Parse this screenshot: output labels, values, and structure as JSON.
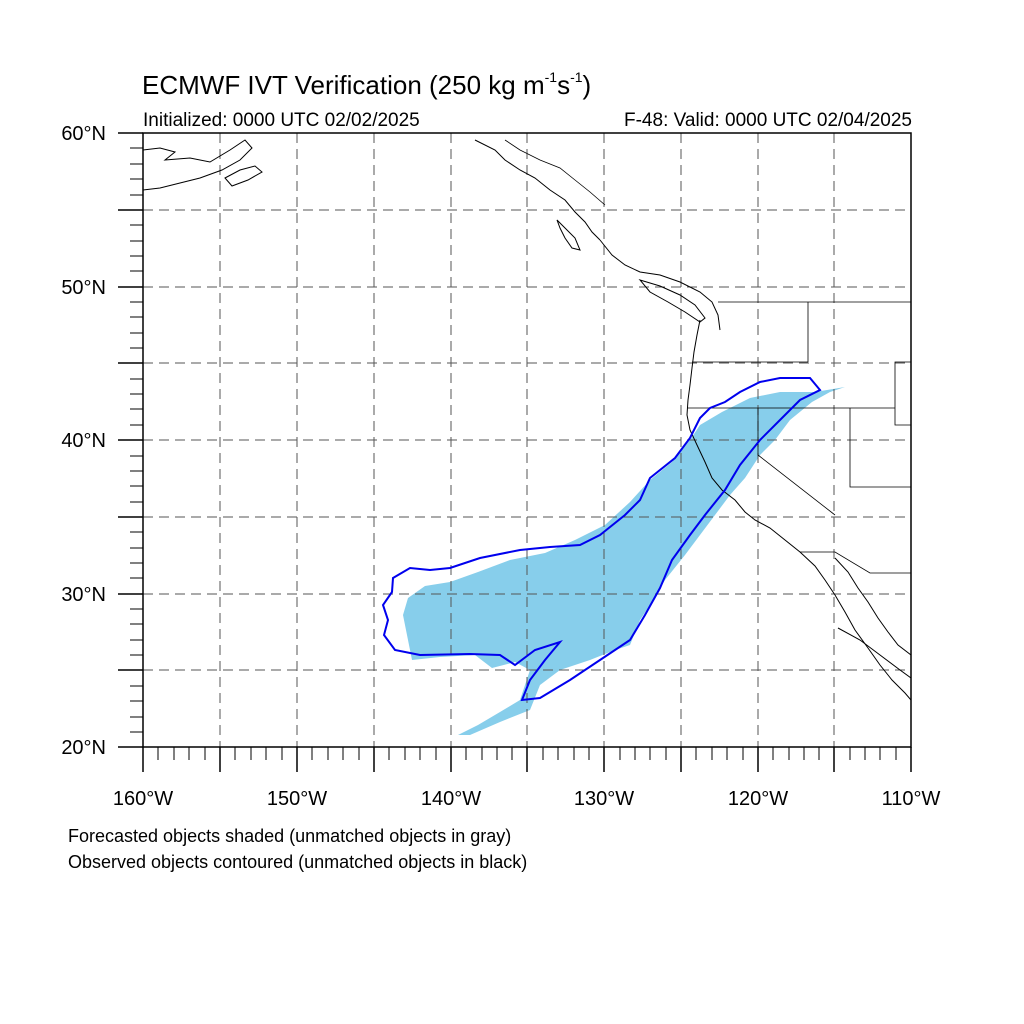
{
  "title": {
    "main": "ECMWF IVT Verification (250 kg m",
    "exp1": "-1",
    "mid": "s",
    "exp2": "-1",
    "tail": ")"
  },
  "init_label": "Initialized: 0000 UTC 02/02/2025",
  "valid_label": "F-48: Valid: 0000 UTC 02/04/2025",
  "lat_ticks": [
    {
      "lat": 60,
      "label": "60°N"
    },
    {
      "lat": 50,
      "label": "50°N"
    },
    {
      "lat": 40,
      "label": "40°N"
    },
    {
      "lat": 30,
      "label": "30°N"
    },
    {
      "lat": 20,
      "label": "20°N"
    }
  ],
  "lon_ticks": [
    {
      "lon": -160,
      "label": "160°W"
    },
    {
      "lon": -150,
      "label": "150°W"
    },
    {
      "lon": -140,
      "label": "140°W"
    },
    {
      "lon": -130,
      "label": "130°W"
    },
    {
      "lon": -120,
      "label": "120°W"
    },
    {
      "lon": -110,
      "label": "110°W"
    }
  ],
  "caption_forecast": "Forecasted objects shaded (unmatched objects in gray)",
  "caption_observed": "Observed objects contoured (unmatched objects in black)",
  "colors": {
    "forecast_fill": "#87ceeb",
    "observed_contour": "#0000ee",
    "coastline": "#000000",
    "grid": "#555555"
  }
}
